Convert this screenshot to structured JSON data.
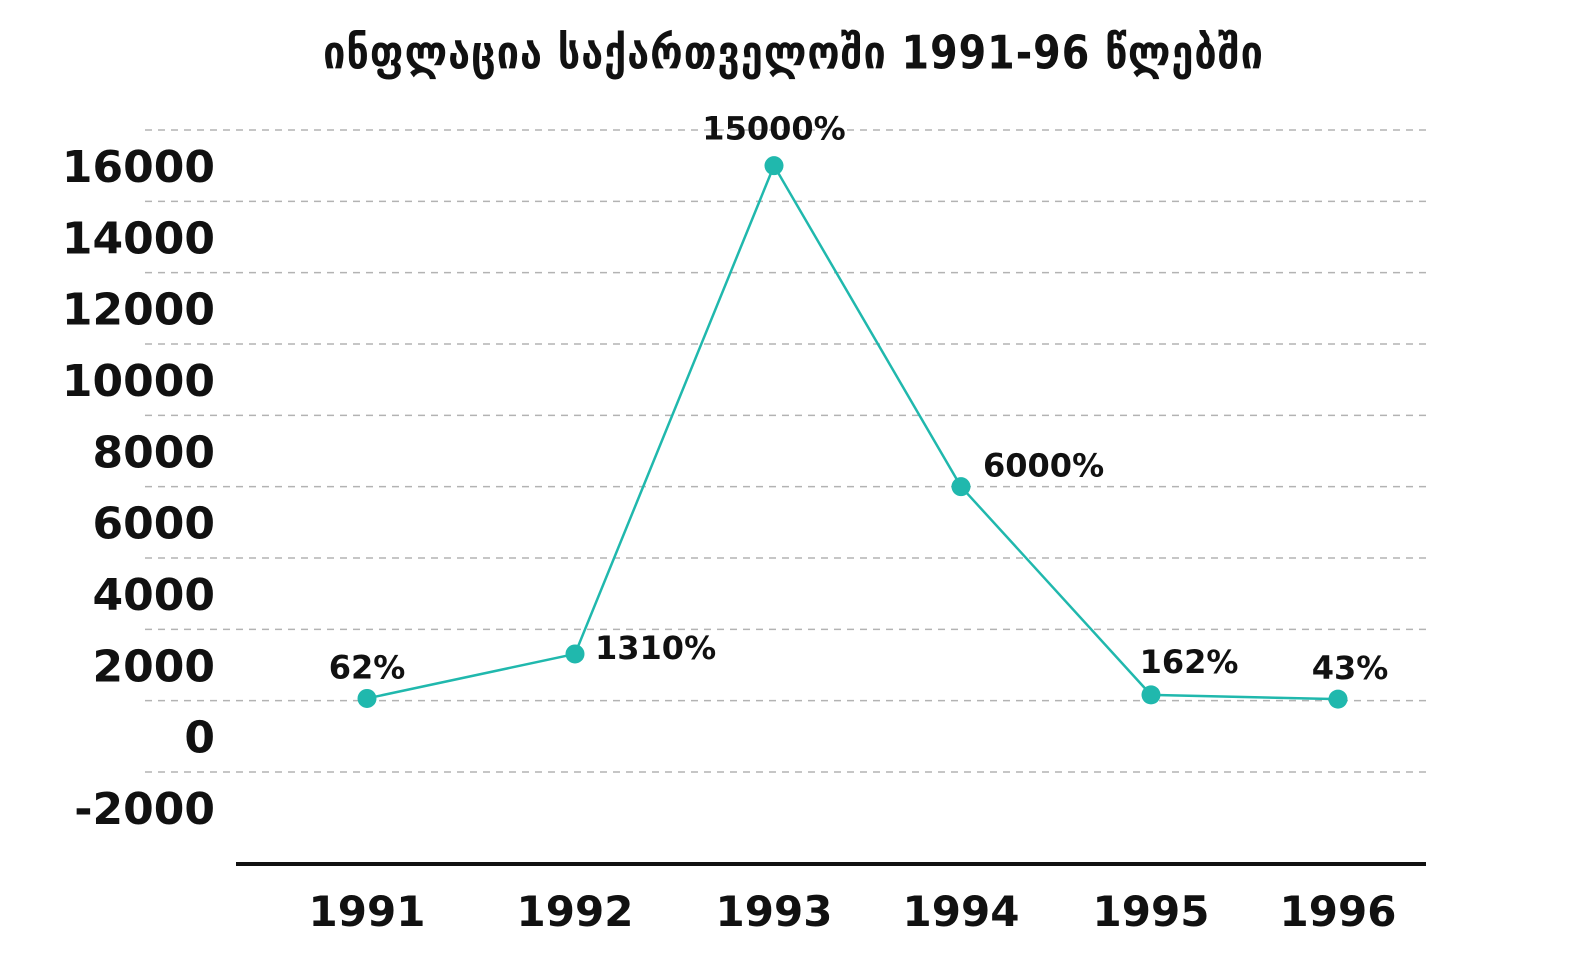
{
  "chart_data": {
    "type": "line",
    "title": "ინფლაცია საქართველოში 1991-96 წლებში",
    "xlabel": "",
    "ylabel": "",
    "categories": [
      "1991",
      "1992",
      "1993",
      "1994",
      "1995",
      "1996"
    ],
    "series": [
      {
        "values": [
          62,
          1310,
          15000,
          6000,
          162,
          43
        ],
        "labels": [
          "62%",
          "1310%",
          "15000%",
          "6000%",
          "162%",
          "43%"
        ]
      }
    ],
    "ylim": [
      -2000,
      16000
    ],
    "yticks": [
      "16000",
      "14000",
      "12000",
      "10000",
      "8000",
      "6000",
      "4000",
      "2000",
      "0",
      "-2000"
    ],
    "grid": true,
    "colors": {
      "line": "#20b8ad",
      "grid": "#b3b3b3",
      "axis": "#111111"
    }
  }
}
